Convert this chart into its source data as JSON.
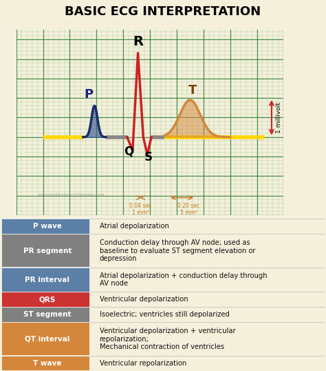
{
  "title": "BASIC ECG INTERPRETATION",
  "title_bg": "#FFFF00",
  "title_color": "#000000",
  "bg_color": "#F5F0DC",
  "grid_color": "#4CAF50",
  "table_rows": [
    {
      "label": "P wave",
      "label_bg": "#5B7FA6",
      "label_color": "#FFFFFF",
      "text": "Atrial depolarization"
    },
    {
      "label": "PR segment",
      "label_bg": "#808080",
      "label_color": "#FFFFFF",
      "text": "Conduction delay through AV node; used as\nbaseline to evaluate ST segment elevation or\ndepression"
    },
    {
      "label": "PR interval",
      "label_bg": "#5B7FA6",
      "label_color": "#FFFFFF",
      "text": "Atrial depolarization + conduction delay through\nAV node"
    },
    {
      "label": "QRS",
      "label_bg": "#CC3333",
      "label_color": "#FFFFFF",
      "text": "Ventricular depolarization"
    },
    {
      "label": "ST segment",
      "label_bg": "#808080",
      "label_color": "#FFFFFF",
      "text": "Isoelectric; ventricles still depolarized"
    },
    {
      "label": "QT interval",
      "label_bg": "#D4873A",
      "label_color": "#FFFFFF",
      "text": "Ventricular depolarization + ventricular\nrepolarization;\nMechanical contraction of ventricles"
    },
    {
      "label": "T wave",
      "label_bg": "#D4873A",
      "label_color": "#FFFFFF",
      "text": "Ventricular repolarization"
    }
  ],
  "watermark": "yours4udgn4nurs3|tumblr.com",
  "row_heights": [
    1,
    2.2,
    1.6,
    1,
    1,
    2.2,
    1
  ]
}
